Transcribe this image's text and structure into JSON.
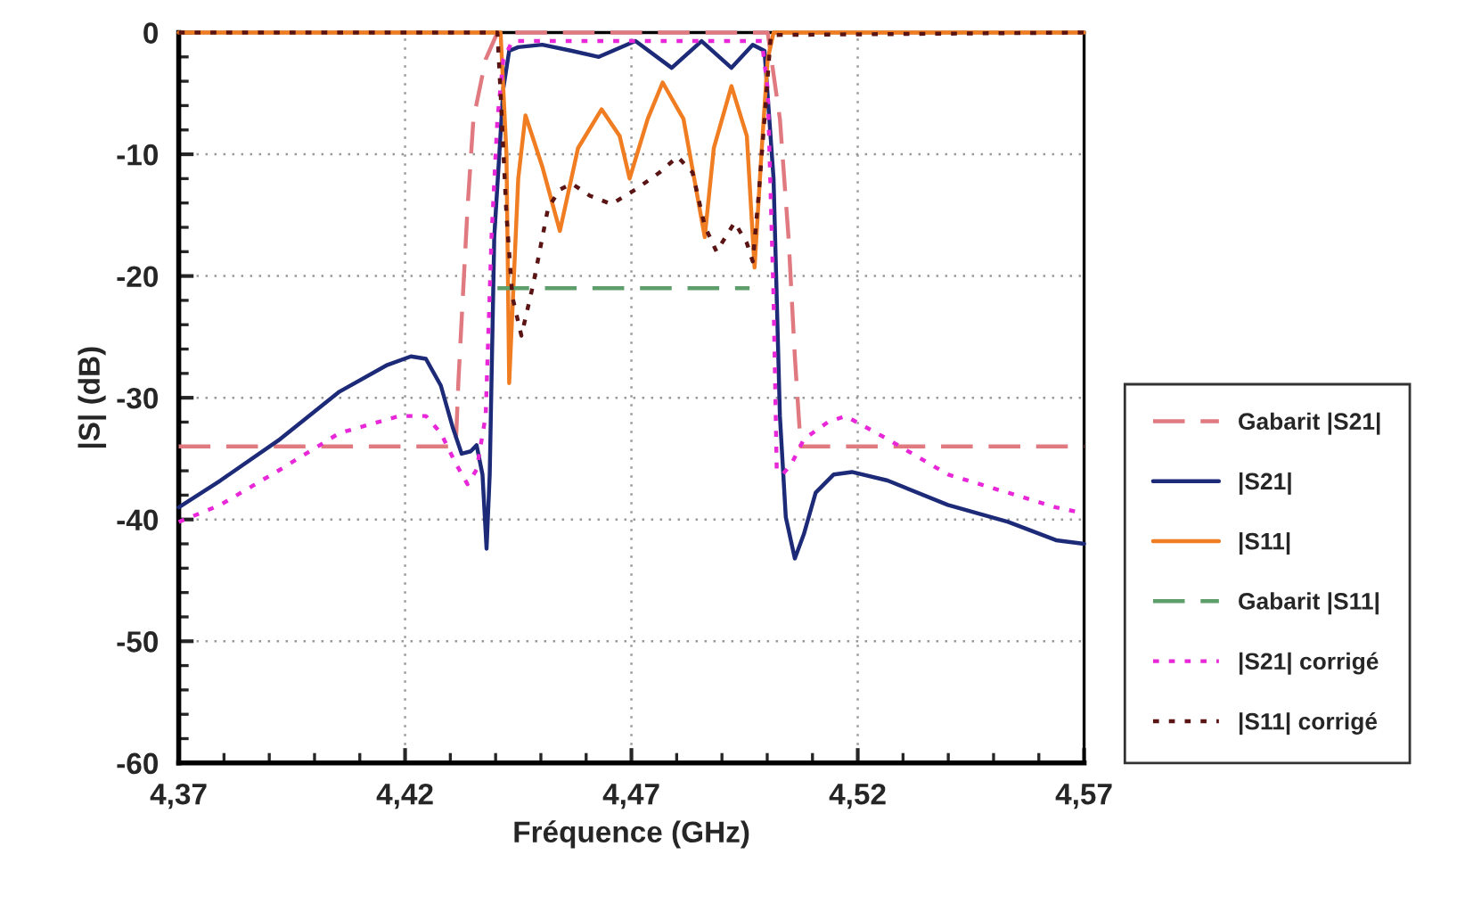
{
  "chart_data": {
    "type": "line",
    "xlabel": "Fréquence (GHz)",
    "ylabel": "|S| (dB)",
    "xlim": [
      4.37,
      4.57
    ],
    "ylim": [
      -60,
      0
    ],
    "xticks": [
      {
        "value": 4.37,
        "label": "4,37"
      },
      {
        "value": 4.42,
        "label": "4,42"
      },
      {
        "value": 4.47,
        "label": "4,47"
      },
      {
        "value": 4.52,
        "label": "4,52"
      },
      {
        "value": 4.57,
        "label": "4,57"
      }
    ],
    "yticks": [
      -60,
      -50,
      -40,
      -30,
      -20,
      -10,
      0
    ],
    "grid": true,
    "legend": "right",
    "marker": "none",
    "series": [
      {
        "name": "Gabarit |S21|",
        "color": "#e07a80",
        "line_style": "dashed",
        "x": [
          4.37,
          4.4312,
          4.4318,
          4.4338,
          4.4351,
          4.4378,
          4.4404,
          4.5001,
          4.5028,
          4.5047,
          4.5061,
          4.5074,
          4.57
        ],
        "values": [
          -34,
          -34,
          -28.5,
          -14.4,
          -7.1,
          -2.2,
          0,
          0,
          -7.1,
          -16.8,
          -26.6,
          -34,
          -34
        ]
      },
      {
        "name": "|S21|",
        "color": "#1c2a78",
        "line_style": "solid",
        "x": [
          4.37,
          4.3792,
          4.3924,
          4.4055,
          4.4161,
          4.4213,
          4.4246,
          4.4279,
          4.4305,
          4.4325,
          4.4345,
          4.4358,
          4.4371,
          4.438,
          4.4387,
          4.4397,
          4.4417,
          4.443,
          4.445,
          4.4503,
          4.4568,
          4.4628,
          4.4709,
          4.4789,
          4.4855,
          4.4921,
          4.4968,
          4.4994,
          4.5014,
          4.5028,
          4.5041,
          4.5061,
          4.5081,
          4.5107,
          4.5147,
          4.5187,
          4.5266,
          4.5399,
          4.5532,
          4.5638,
          4.57
        ],
        "values": [
          -39,
          -36.8,
          -33.4,
          -29.5,
          -27.3,
          -26.6,
          -26.8,
          -29,
          -32.4,
          -34.6,
          -34.4,
          -33.9,
          -36.3,
          -42.4,
          -36.3,
          -16.8,
          -4.6,
          -1.5,
          -1.2,
          -1.0,
          -1.5,
          -2.0,
          -0.7,
          -2.9,
          -0.7,
          -2.9,
          -1.0,
          -1.5,
          -12.0,
          -31.5,
          -39.8,
          -43.2,
          -41.2,
          -37.8,
          -36.3,
          -36.1,
          -36.8,
          -38.8,
          -40.2,
          -41.7,
          -42
        ]
      },
      {
        "name": "|S11|",
        "color": "#f07d22",
        "line_style": "solid",
        "x": [
          4.37,
          4.4411,
          4.4424,
          4.443,
          4.445,
          4.4466,
          4.4503,
          4.4542,
          4.4582,
          4.4634,
          4.4674,
          4.4696,
          4.4736,
          4.4769,
          4.4815,
          4.4862,
          4.4882,
          4.4921,
          4.4955,
          4.4972,
          4.4988,
          4.5001,
          4.5014,
          4.57
        ],
        "values": [
          0,
          0,
          -10,
          -28.8,
          -12.0,
          -6.8,
          -11.0,
          -16.3,
          -9.5,
          -6.3,
          -8.5,
          -12.0,
          -7.1,
          -4.1,
          -7.1,
          -16.8,
          -9.5,
          -4.4,
          -8.5,
          -19.3,
          -9.5,
          -2.2,
          0,
          0
        ]
      },
      {
        "name": "Gabarit |S11|",
        "color": "#5e9e6a",
        "line_style": "dashed",
        "x": [
          4.4404,
          4.4961
        ],
        "values": [
          -21,
          -21
        ]
      },
      {
        "name": "|S21| corrigé",
        "color": "#e828d8",
        "line_style": "dotted",
        "x": [
          4.37,
          4.3792,
          4.3924,
          4.4055,
          4.4187,
          4.4246,
          4.4279,
          4.4312,
          4.4338,
          4.4358,
          4.4378,
          4.4391,
          4.4404,
          4.4417,
          4.4437,
          4.4988,
          4.5001,
          4.5014,
          4.5021,
          4.5034,
          4.5054,
          4.5081,
          4.5134,
          4.5173,
          4.5266,
          4.5399,
          4.5532,
          4.5638,
          4.57
        ],
        "values": [
          -40.2,
          -38.8,
          -35.9,
          -32.9,
          -31.5,
          -31.5,
          -32.9,
          -35.4,
          -37.1,
          -35.9,
          -31.5,
          -16.8,
          -7.1,
          -2.2,
          -0.7,
          -0.7,
          -4.6,
          -21.7,
          -35.9,
          -36.3,
          -35.4,
          -33.4,
          -32.0,
          -31.5,
          -33.4,
          -36.3,
          -37.8,
          -39.0,
          -39.5
        ]
      },
      {
        "name": "|S11| corrigé",
        "color": "#5a1414",
        "line_style": "dotted",
        "x": [
          4.37,
          4.4404,
          4.4411,
          4.4424,
          4.4437,
          4.4457,
          4.4483,
          4.4516,
          4.4542,
          4.4568,
          4.4608,
          4.4656,
          4.4709,
          4.4762,
          4.4802,
          4.4835,
          4.4862,
          4.4888,
          4.4908,
          4.4928,
          4.4955,
          4.4968,
          4.4981,
          4.4994,
          4.5008,
          4.57
        ],
        "values": [
          0,
          0,
          -5,
          -15,
          -21.7,
          -24.9,
          -20.7,
          -14.4,
          -12.9,
          -12.4,
          -13.4,
          -14.1,
          -12.9,
          -11.5,
          -10.2,
          -11.5,
          -15.9,
          -18.0,
          -16.8,
          -15.6,
          -17.3,
          -18.8,
          -13.4,
          -7.1,
          -0.2,
          0
        ]
      }
    ]
  }
}
